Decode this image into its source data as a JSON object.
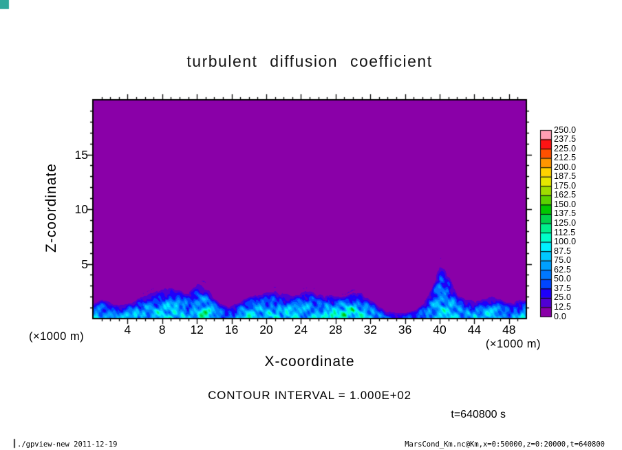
{
  "corner_marker_color": "#2fa89b",
  "footer": {
    "left": "./gpview-new  2011-12-19",
    "right": "MarsCond_Km.nc@Km,x=0:50000,z=0:20000,t=640800"
  },
  "chart_data": {
    "type": "heatmap",
    "title": "turbulent diffusion coefficient",
    "xlabel": "X-coordinate",
    "ylabel": "Z-coordinate",
    "x_unit_label": "(×1000 m)",
    "z_unit_label": "(×1000 m)",
    "contour_interval_label": "CONTOUR INTERVAL = 1.000E+02",
    "time_label": "t=640800 s",
    "x_range": [
      0,
      50
    ],
    "z_range": [
      0,
      20
    ],
    "x_ticks": [
      4,
      8,
      12,
      16,
      20,
      24,
      28,
      32,
      36,
      40,
      44,
      48
    ],
    "z_ticks": [
      5,
      10,
      15
    ],
    "value_range": [
      0,
      250
    ],
    "colorbar": {
      "levels": [
        0.0,
        12.5,
        25.0,
        37.5,
        50.0,
        62.5,
        75.0,
        87.5,
        100.0,
        112.5,
        125.0,
        137.5,
        150.0,
        162.5,
        175.0,
        187.5,
        200.0,
        212.5,
        225.0,
        237.5,
        250.0
      ],
      "labels_top_to_bottom": [
        "250.0",
        "237.5",
        "225.0",
        "212.5",
        "200.0",
        "187.5",
        "175.0",
        "162.5",
        "150.0",
        "137.5",
        "125.0",
        "112.5",
        "100.0",
        "87.5",
        "75.0",
        "62.5",
        "50.0",
        "37.5",
        "25.0",
        "12.5",
        "0.0"
      ],
      "colors_low_to_high": [
        "#8a00a8",
        "#5000d2",
        "#1e00fa",
        "#0046ff",
        "#0078ff",
        "#00a0ff",
        "#00c8ff",
        "#00f0ff",
        "#00ffc8",
        "#00f08c",
        "#00d24b",
        "#00c800",
        "#5ad200",
        "#a0dc00",
        "#e6e600",
        "#ffd200",
        "#ff9600",
        "#ff5000",
        "#ff1414",
        "#ff9eb4"
      ]
    },
    "field": {
      "note": "Turbulent layer confined near the surface; value 0 (purple) above. Columns sampled at x = 0..50 km step 1.",
      "x_start": 0,
      "x_step": 1,
      "layer_top_km": [
        1.6,
        2.0,
        1.8,
        1.5,
        1.6,
        2.0,
        2.4,
        2.8,
        3.1,
        3.2,
        3.0,
        2.7,
        3.6,
        3.3,
        2.2,
        1.5,
        1.4,
        1.9,
        2.3,
        2.5,
        2.7,
        2.9,
        2.6,
        2.4,
        2.7,
        2.9,
        2.6,
        2.5,
        2.3,
        2.2,
        2.6,
        2.7,
        2.0,
        1.3,
        0.9,
        0.7,
        0.7,
        0.9,
        1.5,
        3.0,
        5.6,
        4.6,
        2.6,
        2.0,
        1.9,
        2.1,
        2.3,
        2.0,
        1.7,
        1.9,
        2.1
      ],
      "peak_value": [
        100,
        105,
        95,
        85,
        90,
        100,
        105,
        110,
        115,
        110,
        105,
        100,
        115,
        130,
        95,
        80,
        80,
        100,
        110,
        105,
        110,
        115,
        105,
        110,
        105,
        115,
        105,
        110,
        120,
        160,
        150,
        115,
        100,
        80,
        60,
        50,
        50,
        60,
        85,
        100,
        115,
        105,
        95,
        90,
        100,
        105,
        100,
        95,
        90,
        100,
        105
      ]
    }
  }
}
